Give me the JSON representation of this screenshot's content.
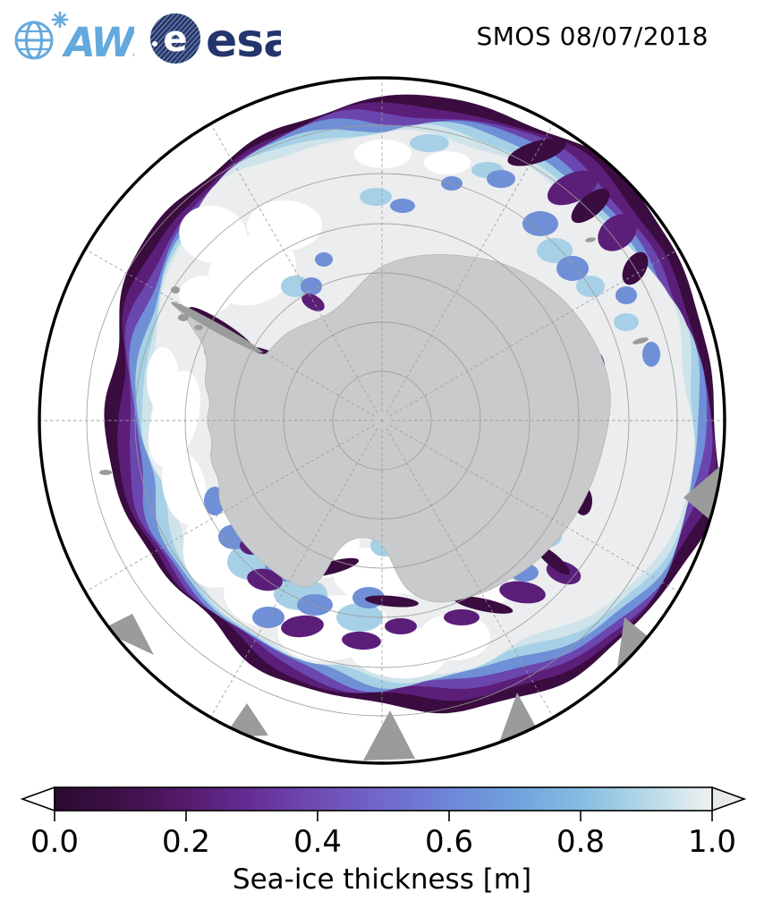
{
  "header": {
    "title": "SMOS 08/07/2018",
    "awi_label": "AWI",
    "esa_mark_letter": "e",
    "esa_label": "esa",
    "awi_color": "#64a9dd",
    "esa_color": "#24356d"
  },
  "map": {
    "type": "south-polar-sea-ice-thickness-map",
    "region": "Antarctica",
    "palette": {
      "ocean": "#ffffff",
      "land": "#c9cacb",
      "land_minor": "#9a9b9b",
      "pack_ice_over_1m": "#ebedee",
      "grid": "#9b9b9b",
      "boundary": "#000000",
      "ice_bands_outer_to_inner": [
        "#3a0c40",
        "#5b1e79",
        "#6a46ae",
        "#6f8fd6",
        "#a6d0e6",
        "#cfe4ea",
        "#ebedee"
      ]
    }
  },
  "colorbar": {
    "label": "Sea-ice thickness [m]",
    "ticks": [
      "0.0",
      "0.2",
      "0.4",
      "0.6",
      "0.8",
      "1.0"
    ],
    "min": 0.0,
    "max": 1.0,
    "units": "m",
    "under_color": "#ffffff",
    "over_color": "#e8eaea",
    "gradient_stops": [
      [
        0.0,
        "#2b0b2e"
      ],
      [
        0.1,
        "#3f1049"
      ],
      [
        0.2,
        "#541a6c"
      ],
      [
        0.3,
        "#652e96"
      ],
      [
        0.4,
        "#6e4db4"
      ],
      [
        0.5,
        "#7268cb"
      ],
      [
        0.6,
        "#6e86d9"
      ],
      [
        0.7,
        "#6fa3dc"
      ],
      [
        0.8,
        "#85bce1"
      ],
      [
        0.9,
        "#b5d8e7"
      ],
      [
        1.0,
        "#eef2f1"
      ]
    ]
  }
}
